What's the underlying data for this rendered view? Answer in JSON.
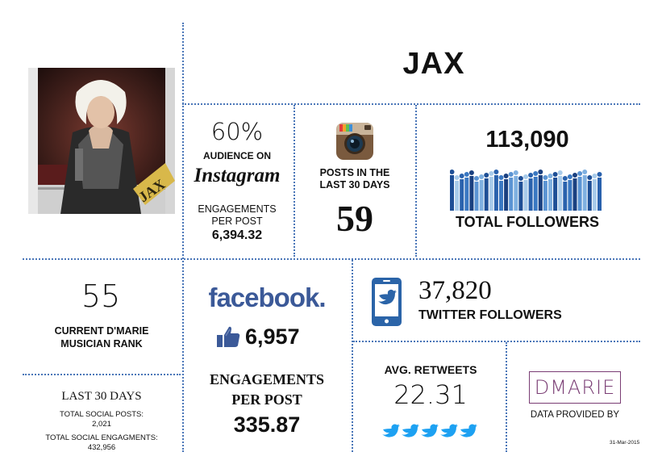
{
  "artist": {
    "name": "JAX",
    "photo_caption": "JAX"
  },
  "instagram": {
    "audience_percent": "60%",
    "audience_label": "AUDIENCE ON",
    "logo_text": "Instagram",
    "engagements_label": "ENGAGEMENTS PER POST",
    "engagements_value": "6,394.32"
  },
  "posts": {
    "label": "POSTS IN THE LAST 30 DAYS",
    "value": "59"
  },
  "followers": {
    "total": "113,090",
    "label": "TOTAL FOLLOWERS"
  },
  "rank": {
    "value": "55",
    "label": "CURRENT D'MARIE MUSICIAN RANK"
  },
  "facebook": {
    "logo_text": "facebook.",
    "likes": "6,957",
    "engagements_label": "ENGAGEMENTS PER POST",
    "engagements_value": "335.87"
  },
  "twitter": {
    "followers_value": "37,820",
    "followers_label": "TWITTER FOLLOWERS",
    "retweets_label": "AVG. RETWEETS",
    "retweets_value": "22.31"
  },
  "last30": {
    "title": "LAST 30 DAYS",
    "social_posts_label": "TOTAL SOCIAL POSTS:",
    "social_posts_value": "2,021",
    "engagements_label": "TOTAL SOCIAL ENGAGMENTS:",
    "engagements_value": "432,956"
  },
  "provider": {
    "logo_text": "DMARIE",
    "label": "DATA PROVIDED BY",
    "date": "31-Mar-2015"
  },
  "colors": {
    "divider": "#4a76b8",
    "twitter_blue": "#1da1f2",
    "facebook_blue": "#3b5998",
    "dmarie_purple": "#7a3d74"
  }
}
